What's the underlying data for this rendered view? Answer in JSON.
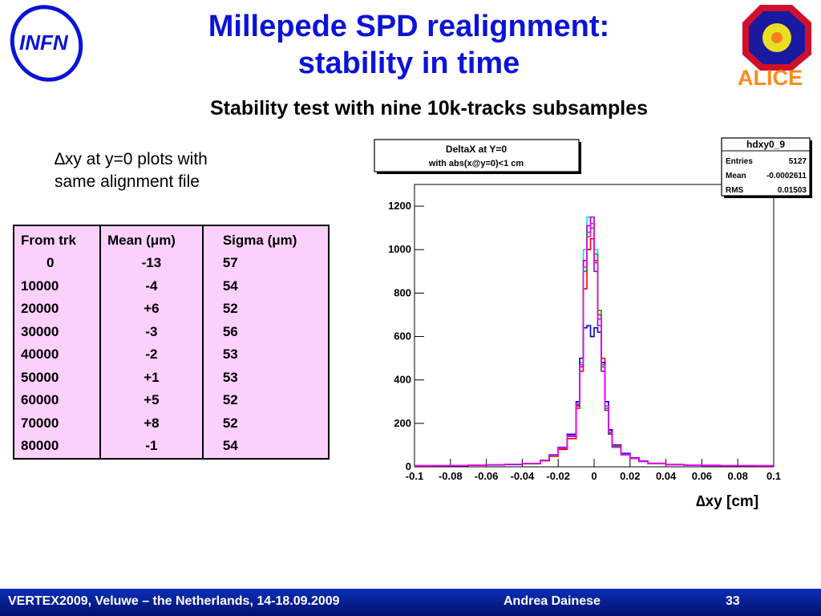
{
  "slide": {
    "title_line1": "Millepede SPD realignment:",
    "title_line2": "stability in time",
    "subtitle": "Stability test with nine 10k-tracks subsamples",
    "note_line1": "∆xy at y=0 plots with",
    "note_line2": "same alignment file",
    "footer": {
      "conference": "VERTEX2009, Veluwe – the Netherlands, 14-18.09.2009",
      "author": "Andrea Dainese",
      "page": "33"
    },
    "logos": {
      "left": "INFN",
      "right": "ALICE"
    },
    "colors": {
      "title": "#0a14d6",
      "table_bg": "#fcd0fc",
      "footer": "#0b2fb8"
    }
  },
  "table": {
    "headers": [
      "From trk",
      "Mean (μm)",
      "Sigma (μm)"
    ],
    "rows": [
      [
        "0",
        "-13",
        "57"
      ],
      [
        "10000",
        "-4",
        "54"
      ],
      [
        "20000",
        "+6",
        "52"
      ],
      [
        "30000",
        "-3",
        "56"
      ],
      [
        "40000",
        "-2",
        "53"
      ],
      [
        "50000",
        "+1",
        "53"
      ],
      [
        "60000",
        "+5",
        "52"
      ],
      [
        "70000",
        "+8",
        "52"
      ],
      [
        "80000",
        "-1",
        "54"
      ]
    ]
  },
  "chart_data": {
    "type": "line",
    "title": "DeltaX at Y=0",
    "subtitle": "with abs(x@y=0)<1 cm",
    "xlabel": "∆xy [cm]",
    "ylabel": "",
    "xlim": [
      -0.1,
      0.1
    ],
    "ylim": [
      0,
      1300
    ],
    "xticks": [
      "-0.1",
      "-0.08",
      "-0.06",
      "-0.04",
      "-0.02",
      "0",
      "0.02",
      "0.04",
      "0.06",
      "0.08",
      "0.1"
    ],
    "yticks": [
      "0",
      "200",
      "400",
      "600",
      "800",
      "1000",
      "1200"
    ],
    "stats_box": {
      "name": "hdxy0_9",
      "rows": [
        {
          "label": "Entries",
          "value": "5127"
        },
        {
          "label": "Mean",
          "value": "-0.0002611"
        },
        {
          "label": "RMS",
          "value": "0.01503"
        }
      ]
    },
    "x": [
      -0.1,
      -0.09,
      -0.08,
      -0.07,
      -0.06,
      -0.05,
      -0.04,
      -0.03,
      -0.025,
      -0.02,
      -0.015,
      -0.01,
      -0.008,
      -0.006,
      -0.004,
      -0.002,
      0,
      0.002,
      0.004,
      0.006,
      0.008,
      0.01,
      0.015,
      0.02,
      0.025,
      0.03,
      0.04,
      0.05,
      0.06,
      0.07,
      0.08,
      0.09,
      0.1
    ],
    "series": [
      {
        "color": "#00e0e0",
        "values": [
          5,
          5,
          5,
          8,
          8,
          10,
          15,
          30,
          55,
          90,
          150,
          300,
          480,
          1000,
          1150,
          1120,
          1000,
          700,
          480,
          280,
          160,
          95,
          60,
          40,
          25,
          15,
          10,
          8,
          6,
          5,
          5,
          5,
          5
        ]
      },
      {
        "color": "#a000d0",
        "values": [
          5,
          5,
          6,
          8,
          10,
          12,
          15,
          28,
          50,
          85,
          140,
          280,
          460,
          950,
          1110,
          1150,
          900,
          650,
          440,
          260,
          150,
          90,
          55,
          38,
          24,
          15,
          10,
          8,
          7,
          5,
          5,
          5,
          5
        ]
      },
      {
        "color": "#ff0000",
        "values": [
          4,
          5,
          6,
          7,
          9,
          11,
          14,
          28,
          48,
          80,
          130,
          270,
          440,
          820,
          1000,
          1050,
          950,
          700,
          500,
          300,
          170,
          100,
          60,
          40,
          26,
          16,
          10,
          8,
          6,
          5,
          5,
          4,
          4
        ]
      },
      {
        "color": "#00a000",
        "values": [
          5,
          5,
          6,
          8,
          9,
          11,
          15,
          29,
          52,
          88,
          145,
          285,
          470,
          900,
          1080,
          1100,
          980,
          720,
          460,
          270,
          155,
          92,
          58,
          39,
          25,
          15,
          10,
          8,
          6,
          5,
          5,
          5,
          5
        ]
      },
      {
        "color": "#0000c0",
        "values": [
          5,
          5,
          6,
          8,
          9,
          11,
          15,
          30,
          55,
          90,
          150,
          300,
          500,
          640,
          650,
          600,
          640,
          620,
          480,
          300,
          170,
          100,
          62,
          42,
          27,
          16,
          11,
          8,
          6,
          5,
          5,
          5,
          5
        ]
      },
      {
        "color": "#ff00ff",
        "values": [
          5,
          5,
          6,
          8,
          10,
          12,
          16,
          30,
          54,
          88,
          145,
          290,
          470,
          920,
          1060,
          1120,
          940,
          680,
          470,
          280,
          160,
          96,
          58,
          40,
          25,
          16,
          10,
          8,
          7,
          5,
          5,
          5,
          5
        ]
      }
    ]
  }
}
